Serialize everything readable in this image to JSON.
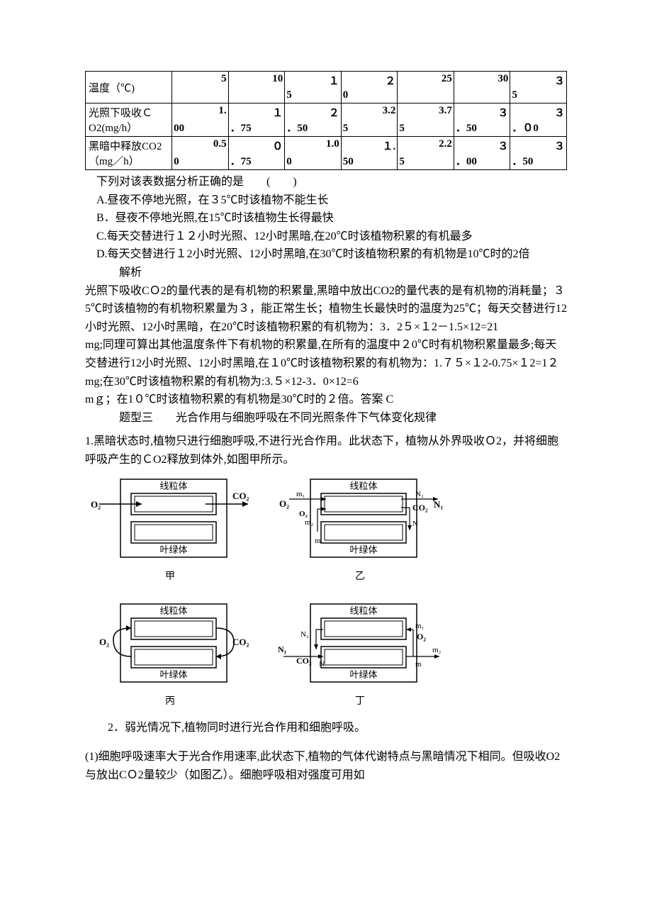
{
  "table": {
    "row_headers": [
      "温度（℃)",
      "光照下吸收ＣO2(mg/h）",
      "黑暗中释放CO2（mg／h）"
    ],
    "cells": [
      [
        {
          "l": "",
          "r": "5"
        },
        {
          "l": "",
          "r": "10"
        },
        {
          "l": "5",
          "r": "１"
        },
        {
          "l": "0",
          "r": "２"
        },
        {
          "l": "",
          "r": "25"
        },
        {
          "l": "",
          "r": "30"
        },
        {
          "l": "5",
          "r": "３"
        }
      ],
      [
        {
          "l": "00",
          "r": "1."
        },
        {
          "l": "．75",
          "r": "１"
        },
        {
          "l": "．50",
          "r": "２"
        },
        {
          "l": "5",
          "r": "3.2"
        },
        {
          "l": "5",
          "r": "3.7"
        },
        {
          "l": "．50",
          "r": "３"
        },
        {
          "l": "．０0",
          "r": "３"
        }
      ],
      [
        {
          "l": "0",
          "r": "0.5"
        },
        {
          "l": "．75",
          "r": "０"
        },
        {
          "l": "0",
          "r": "1.0"
        },
        {
          "l": "50",
          "r": "１."
        },
        {
          "l": "5",
          "r": "2.2"
        },
        {
          "l": "．00",
          "r": "３"
        },
        {
          "l": "．50",
          "r": "３"
        }
      ]
    ]
  },
  "lines": {
    "l1": "下列对该表数据分析正确的是　　(　　)",
    "l2": "A.昼夜不停地光照，在３5℃时该植物不能生长",
    "l3": "B．昼夜不停地光照,在15℃时该植物生长得最快",
    "l4": "C.每天交替进行１２小时光照、12小时黑暗,在20℃时该植物积累的有机最多",
    "l5": "D.每天交替进行１2小时光照、12小时黑暗,在30℃时该植物积累的有机物是10℃时的2倍",
    "l6": "解析",
    "l7": "光照下吸收CＯ2的量代表的是有机物的积累量,黑暗中放出CO2的量代表的是有机物的消耗量；３5℃时该植物的有机物积累量为３，能正常生长；植物生长最快时的温度为25℃；每天交替进行12小时光照、12小时黑暗，在20℃时该植物积累的有机物为：3．2５×１2－1.5×12=21",
    "l8": "mg;同理可算出其他温度条件下有机物的积累量,在所有的温度中２0℃时有机物积累量最多;每天交替进行12小时光照、12小时黑暗,在１0℃时该植物积累的有机物为：1.７５×１2-0.75×１2=1２",
    "l9": "mg;在30℃时该植物积累的有机物为:3.５×12-3．0×12=6",
    "l10": "mｇ；在1０℃时该植物积累的有机物是30℃时的２倍。答案  C",
    "l11": "题型三　　光合作用与细胞呼吸在不同光照条件下气体变化规律",
    "l12": "1.黑暗状态时,植物只进行细胞呼吸,不进行光合作用。此状态下，植物从外界吸收Ｏ2，并将细胞呼吸产生的ＣO2释放到体外,如图甲所示。",
    "l13": "2．弱光情况下,植物同时进行光合作用和细胞呼吸。",
    "l14": "(1)细胞呼吸速率大于光合作用速率,此状态下,植物的气体代谢特点与黑暗情况下相同。但吸收O2与放出CＯ2量较少（如图乙）。细胞呼吸相对强度可用如"
  },
  "diagram": {
    "organelle_top": "线粒体",
    "organelle_bottom": "叶绿体",
    "labels": [
      "甲",
      "乙",
      "丙",
      "丁"
    ],
    "O2": "O₂",
    "CO2": "CO₂",
    "m": "m",
    "m1": "m₁",
    "m2": "m₂",
    "N": "N",
    "N1": "N₁",
    "N2": "N₂",
    "colors": {
      "stroke": "#000000",
      "bg": "#ffffff"
    }
  }
}
